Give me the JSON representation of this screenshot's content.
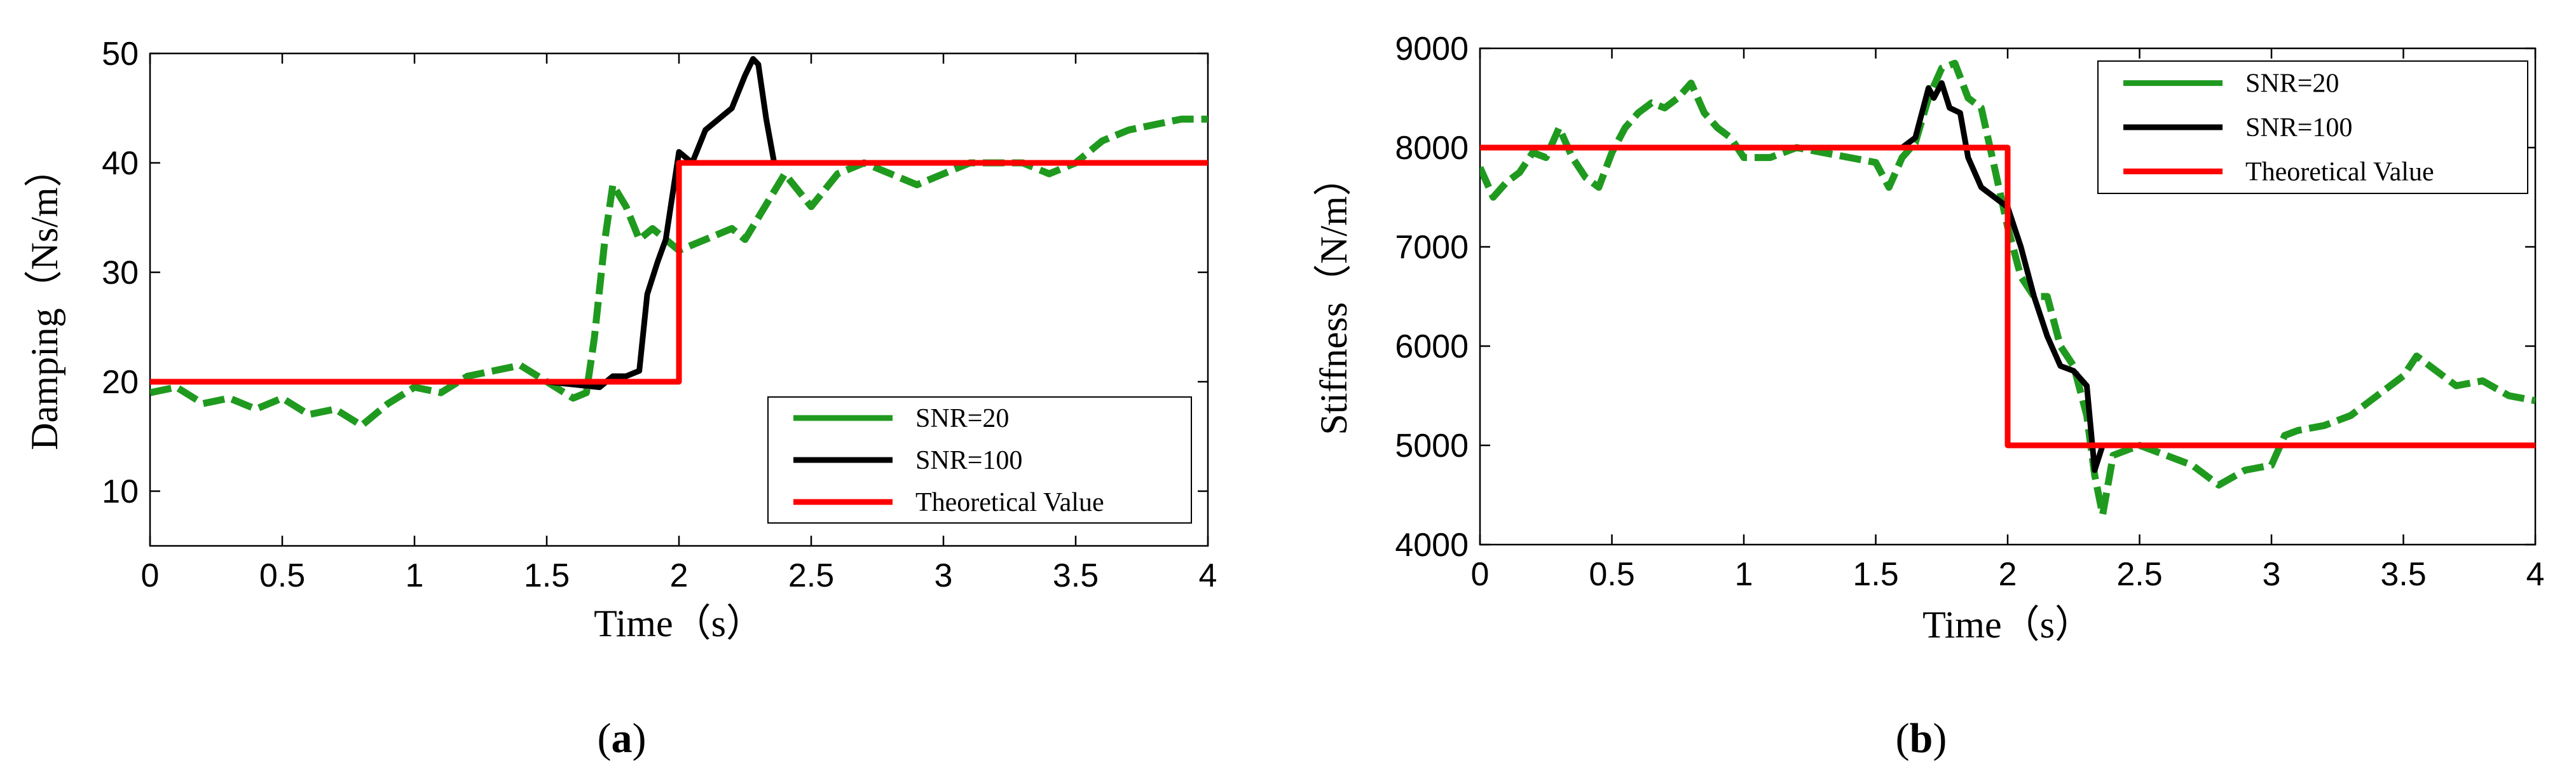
{
  "chart_data": [
    {
      "type": "line",
      "panel_label": "a",
      "xlabel": "Time（s）",
      "ylabel": "Damping（Ns/m）",
      "xlim": [
        0,
        4
      ],
      "ylim": [
        5,
        50
      ],
      "xticks": [
        "0",
        "0.5",
        "1",
        "1.5",
        "2",
        "2.5",
        "3",
        "3.5",
        "4"
      ],
      "yticks": [
        "10",
        "20",
        "30",
        "40",
        "50"
      ],
      "legend_position": "lower-right",
      "series": [
        {
          "name": "SNR=20",
          "color": "#1f9a1f",
          "style": "dashed",
          "x": [
            0,
            0.1,
            0.2,
            0.3,
            0.4,
            0.5,
            0.6,
            0.7,
            0.8,
            0.9,
            1.0,
            1.1,
            1.2,
            1.3,
            1.4,
            1.5,
            1.6,
            1.65,
            1.68,
            1.72,
            1.75,
            1.8,
            1.85,
            1.9,
            2.0,
            2.1,
            2.2,
            2.25,
            2.3,
            2.35,
            2.4,
            2.5,
            2.6,
            2.7,
            2.8,
            2.9,
            3.0,
            3.1,
            3.2,
            3.3,
            3.4,
            3.5,
            3.6,
            3.7,
            3.8,
            3.9,
            4.0
          ],
          "y": [
            19,
            19.5,
            18,
            18.5,
            17.5,
            18.5,
            17,
            17.5,
            16,
            18,
            19.5,
            19,
            20.5,
            21,
            21.5,
            20,
            18.5,
            19,
            24,
            33,
            38,
            36,
            33,
            34,
            32,
            33,
            34,
            33,
            35,
            37,
            39,
            36,
            39,
            40,
            39,
            38,
            39,
            40,
            40,
            40,
            39,
            40,
            42,
            43,
            43.5,
            44,
            44
          ]
        },
        {
          "name": "SNR=100",
          "color": "#000000",
          "style": "solid",
          "x": [
            0,
            0.5,
            1.0,
            1.5,
            1.7,
            1.75,
            1.8,
            1.85,
            1.88,
            1.92,
            1.95,
            2.0,
            2.05,
            2.1,
            2.15,
            2.2,
            2.25,
            2.28,
            2.3,
            2.33,
            2.36,
            2.4,
            2.5,
            3.0,
            3.5,
            4.0
          ],
          "y": [
            20,
            20,
            20,
            20,
            19.5,
            20.5,
            20.5,
            21,
            28,
            31,
            33,
            41,
            40,
            43,
            44,
            45,
            48,
            49.5,
            49,
            44,
            40,
            40,
            40,
            40,
            40,
            40
          ]
        },
        {
          "name": "Theoretical Value",
          "color": "#ff0000",
          "style": "solid",
          "x": [
            0,
            2,
            2,
            4
          ],
          "y": [
            20,
            20,
            40,
            40
          ]
        }
      ]
    },
    {
      "type": "line",
      "panel_label": "b",
      "xlabel": "Time（s）",
      "ylabel": "Stiffness（N/m）",
      "xlim": [
        0,
        4
      ],
      "ylim": [
        4000,
        9000
      ],
      "xticks": [
        "0",
        "0.5",
        "1",
        "1.5",
        "2",
        "2.5",
        "3",
        "3.5",
        "4"
      ],
      "yticks": [
        "4000",
        "5000",
        "6000",
        "7000",
        "8000",
        "9000"
      ],
      "legend_position": "top-right",
      "series": [
        {
          "name": "SNR=20",
          "color": "#1f9a1f",
          "style": "dashed",
          "x": [
            0,
            0.05,
            0.1,
            0.15,
            0.2,
            0.25,
            0.3,
            0.35,
            0.4,
            0.45,
            0.5,
            0.55,
            0.6,
            0.65,
            0.7,
            0.75,
            0.8,
            0.85,
            0.9,
            0.95,
            1.0,
            1.1,
            1.2,
            1.3,
            1.4,
            1.5,
            1.55,
            1.6,
            1.65,
            1.7,
            1.75,
            1.8,
            1.85,
            1.9,
            1.95,
            2.0,
            2.05,
            2.1,
            2.15,
            2.2,
            2.25,
            2.3,
            2.33,
            2.36,
            2.4,
            2.5,
            2.6,
            2.7,
            2.8,
            2.9,
            3.0,
            3.05,
            3.1,
            3.2,
            3.3,
            3.4,
            3.5,
            3.55,
            3.6,
            3.7,
            3.8,
            3.9,
            4.0
          ],
          "y": [
            7800,
            7500,
            7650,
            7750,
            7950,
            7900,
            8200,
            7900,
            7700,
            7600,
            7950,
            8200,
            8350,
            8450,
            8400,
            8500,
            8650,
            8350,
            8200,
            8100,
            7900,
            7900,
            8000,
            7950,
            7900,
            7850,
            7600,
            7900,
            8050,
            8500,
            8800,
            8850,
            8500,
            8400,
            7800,
            7200,
            6700,
            6500,
            6500,
            6000,
            5800,
            5300,
            4700,
            4300,
            4900,
            5000,
            4900,
            4800,
            4600,
            4750,
            4800,
            5100,
            5150,
            5200,
            5300,
            5500,
            5700,
            5900,
            5800,
            5600,
            5650,
            5500,
            5450
          ]
        },
        {
          "name": "SNR=100",
          "color": "#000000",
          "style": "solid",
          "x": [
            0,
            1.0,
            1.5,
            1.6,
            1.65,
            1.7,
            1.72,
            1.75,
            1.78,
            1.82,
            1.85,
            1.9,
            1.95,
            2.0,
            2.05,
            2.1,
            2.15,
            2.2,
            2.25,
            2.3,
            2.33,
            2.36,
            2.4,
            2.5,
            3.0,
            3.5,
            4.0
          ],
          "y": [
            8000,
            8000,
            8000,
            8000,
            8100,
            8600,
            8500,
            8650,
            8400,
            8350,
            7900,
            7600,
            7500,
            7400,
            7000,
            6500,
            6100,
            5800,
            5750,
            5600,
            4750,
            5000,
            5000,
            5000,
            5000,
            5000,
            5000
          ]
        },
        {
          "name": "Theoretical Value",
          "color": "#ff0000",
          "style": "solid",
          "x": [
            0,
            2,
            2,
            4
          ],
          "y": [
            8000,
            8000,
            5000,
            5000
          ]
        }
      ]
    }
  ]
}
